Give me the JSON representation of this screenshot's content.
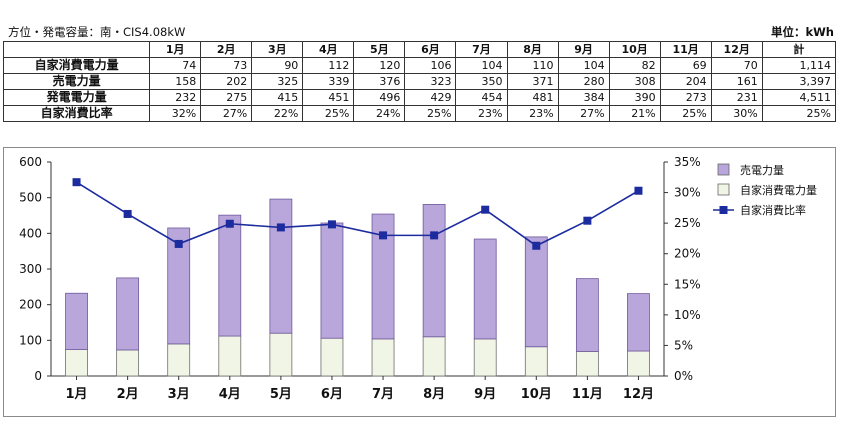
{
  "header": {
    "left": "方位・発電容量：南・CIS4.08kW",
    "right": "単位：kWh"
  },
  "table": {
    "corner": "",
    "columns": [
      "1月",
      "2月",
      "3月",
      "4月",
      "5月",
      "6月",
      "7月",
      "8月",
      "9月",
      "10月",
      "11月",
      "12月",
      "計"
    ],
    "rows": [
      {
        "label": "自家消費電力量",
        "values": [
          "74",
          "73",
          "90",
          "112",
          "120",
          "106",
          "104",
          "110",
          "104",
          "82",
          "69",
          "70",
          "1,114"
        ]
      },
      {
        "label": "売電力量",
        "values": [
          "158",
          "202",
          "325",
          "339",
          "376",
          "323",
          "350",
          "371",
          "280",
          "308",
          "204",
          "161",
          "3,397"
        ]
      },
      {
        "label": "発電電力量",
        "values": [
          "232",
          "275",
          "415",
          "451",
          "496",
          "429",
          "454",
          "481",
          "384",
          "390",
          "273",
          "231",
          "4,511"
        ]
      },
      {
        "label": "自家消費比率",
        "values": [
          "32%",
          "27%",
          "22%",
          "25%",
          "24%",
          "25%",
          "23%",
          "23%",
          "27%",
          "21%",
          "25%",
          "30%",
          "25%"
        ]
      }
    ]
  },
  "chart_data": {
    "type": "bar",
    "stacked": true,
    "categories": [
      "1月",
      "2月",
      "3月",
      "4月",
      "5月",
      "6月",
      "7月",
      "8月",
      "9月",
      "10月",
      "11月",
      "12月"
    ],
    "series": [
      {
        "name": "自家消費電力量",
        "kind": "bar",
        "axis": "left",
        "color": "#f1f5e6",
        "values": [
          74,
          73,
          90,
          112,
          120,
          106,
          104,
          110,
          104,
          82,
          69,
          70
        ]
      },
      {
        "name": "売電力量",
        "kind": "bar",
        "axis": "left",
        "color": "#b9a6da",
        "values": [
          158,
          202,
          325,
          339,
          376,
          323,
          350,
          371,
          280,
          308,
          204,
          161
        ]
      },
      {
        "name": "自家消費比率",
        "kind": "line",
        "axis": "right",
        "color": "#1c2c9e",
        "values": [
          31.7,
          26.5,
          21.6,
          24.9,
          24.3,
          24.8,
          23.0,
          23.0,
          27.2,
          21.3,
          25.4,
          30.3
        ]
      }
    ],
    "y_left": {
      "min": 0,
      "max": 600,
      "ticks": [
        "0",
        "100",
        "200",
        "300",
        "400",
        "500",
        "600"
      ]
    },
    "y_right": {
      "min": 0,
      "max": 35,
      "ticks": [
        "0%",
        "5%",
        "10%",
        "15%",
        "20%",
        "25%",
        "30%",
        "35%"
      ]
    },
    "legend": {
      "placement": "top-right",
      "items": [
        {
          "label": "売電力量",
          "symbol": "box",
          "color": "#b9a6da"
        },
        {
          "label": "自家消費電力量",
          "symbol": "box",
          "color": "#f1f5e6"
        },
        {
          "label": "自家消費比率",
          "symbol": "line-marker",
          "color": "#1c2c9e"
        }
      ]
    },
    "grid": false
  }
}
